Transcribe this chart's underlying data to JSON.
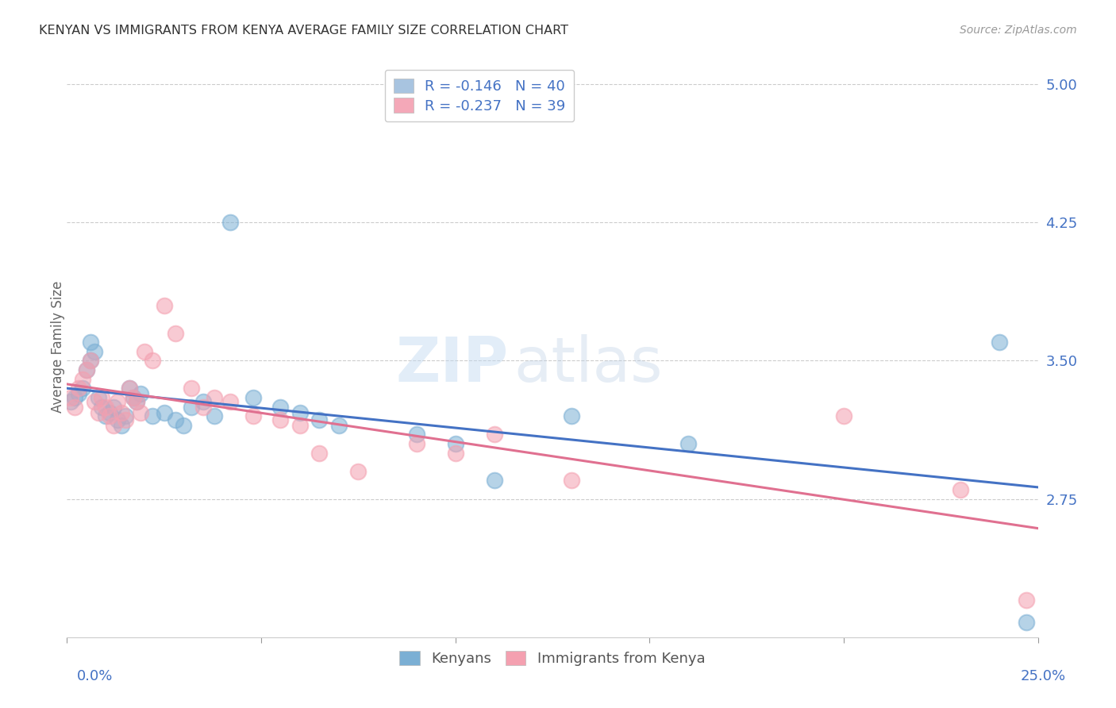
{
  "title": "KENYAN VS IMMIGRANTS FROM KENYA AVERAGE FAMILY SIZE CORRELATION CHART",
  "source": "Source: ZipAtlas.com",
  "ylabel": "Average Family Size",
  "right_yticks": [
    2.75,
    3.5,
    4.25,
    5.0
  ],
  "watermark_zip": "ZIP",
  "watermark_atlas": "atlas",
  "legend_line1": "R = -0.146   N = 40",
  "legend_line2": "R = -0.237   N = 39",
  "legend_color1": "#a8c4e0",
  "legend_color2": "#f4a8b8",
  "kenyan_x": [
    0.001,
    0.002,
    0.003,
    0.004,
    0.005,
    0.006,
    0.006,
    0.007,
    0.008,
    0.009,
    0.01,
    0.011,
    0.012,
    0.013,
    0.014,
    0.015,
    0.016,
    0.017,
    0.018,
    0.019,
    0.022,
    0.025,
    0.028,
    0.03,
    0.032,
    0.035,
    0.038,
    0.042,
    0.048,
    0.055,
    0.06,
    0.065,
    0.07,
    0.09,
    0.1,
    0.11,
    0.13,
    0.16,
    0.24,
    0.247
  ],
  "kenyan_y": [
    3.28,
    3.3,
    3.32,
    3.35,
    3.45,
    3.6,
    3.5,
    3.55,
    3.3,
    3.25,
    3.2,
    3.22,
    3.25,
    3.18,
    3.15,
    3.2,
    3.35,
    3.3,
    3.28,
    3.32,
    3.2,
    3.22,
    3.18,
    3.15,
    3.25,
    3.28,
    3.2,
    4.25,
    3.3,
    3.25,
    3.22,
    3.18,
    3.15,
    3.1,
    3.05,
    2.85,
    3.2,
    3.05,
    3.6,
    2.08
  ],
  "immigrant_x": [
    0.001,
    0.002,
    0.003,
    0.004,
    0.005,
    0.006,
    0.007,
    0.008,
    0.009,
    0.01,
    0.011,
    0.012,
    0.013,
    0.014,
    0.015,
    0.016,
    0.017,
    0.018,
    0.019,
    0.02,
    0.022,
    0.025,
    0.028,
    0.032,
    0.035,
    0.038,
    0.042,
    0.048,
    0.055,
    0.06,
    0.065,
    0.075,
    0.09,
    0.1,
    0.11,
    0.13,
    0.2,
    0.23,
    0.247
  ],
  "immigrant_y": [
    3.3,
    3.25,
    3.35,
    3.4,
    3.45,
    3.5,
    3.28,
    3.22,
    3.3,
    3.25,
    3.2,
    3.15,
    3.28,
    3.22,
    3.18,
    3.35,
    3.3,
    3.28,
    3.22,
    3.55,
    3.5,
    3.8,
    3.65,
    3.35,
    3.25,
    3.3,
    3.28,
    3.2,
    3.18,
    3.15,
    3.0,
    2.9,
    3.05,
    3.0,
    3.1,
    2.85,
    3.2,
    2.8,
    2.2
  ],
  "kenyan_color": "#7bafd4",
  "immigrant_color": "#f4a0b0",
  "kenyan_line_color": "#4472c4",
  "immigrant_line_color": "#e07090",
  "background_color": "#ffffff",
  "grid_color": "#cccccc",
  "title_color": "#333333",
  "right_axis_color": "#4472c4",
  "bottom_label_color": "#4472c4",
  "ylabel_color": "#666666",
  "xtick_positions": [
    0.0,
    0.05,
    0.1,
    0.15,
    0.2,
    0.25
  ],
  "xlim": [
    0.0,
    0.25
  ],
  "ylim": [
    2.0,
    5.15
  ]
}
